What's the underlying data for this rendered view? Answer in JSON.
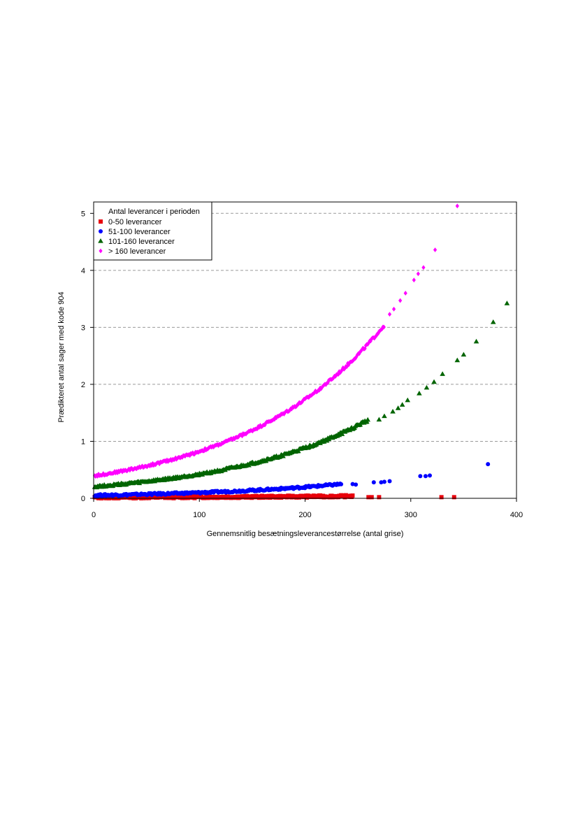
{
  "chart_data": {
    "type": "scatter",
    "xlabel": "Gennemsnitlig besætningsleverancestørrelse (antal grise)",
    "ylabel": "Prædikteret antal sager med kode 904",
    "xlim": [
      0,
      400
    ],
    "ylim": [
      0,
      5.2
    ],
    "x_ticks": [
      0,
      100,
      200,
      300,
      400
    ],
    "y_ticks": [
      0,
      1,
      2,
      3,
      4,
      5
    ],
    "grid": "horizontal dashed",
    "legend": {
      "title": "Antal leverancer i perioden",
      "placement": "top-left"
    },
    "series": [
      {
        "name": "0-50 leverancer",
        "marker": "square",
        "color": "#e8000b",
        "x_range": [
          0,
          245
        ],
        "y_formula": "0.008 * exp(0.0055 * x)",
        "outliers": [
          [
            260,
            0.02
          ],
          [
            263,
            0.02
          ],
          [
            270,
            0.02
          ],
          [
            329,
            0.02
          ],
          [
            341,
            0.02
          ]
        ]
      },
      {
        "name": "51-100 leverancer",
        "marker": "circle",
        "color": "#0000ff",
        "x_range": [
          0,
          235
        ],
        "y_formula": "0.045 * exp(0.0072 * x)",
        "outliers": [
          [
            245,
            0.25
          ],
          [
            248,
            0.24
          ],
          [
            265,
            0.28
          ],
          [
            272,
            0.28
          ],
          [
            275,
            0.29
          ],
          [
            280,
            0.3
          ],
          [
            309,
            0.39
          ],
          [
            314,
            0.39
          ],
          [
            318,
            0.4
          ],
          [
            373,
            0.6
          ]
        ]
      },
      {
        "name": "101-160 leverancer",
        "marker": "triangle",
        "color": "#006400",
        "x_range": [
          0,
          260
        ],
        "y_formula": "0.195 * exp(0.0075 * x)",
        "outliers": [
          [
            270,
            1.38
          ],
          [
            275,
            1.44
          ],
          [
            283,
            1.52
          ],
          [
            288,
            1.58
          ],
          [
            292,
            1.64
          ],
          [
            297,
            1.72
          ],
          [
            308,
            1.84
          ],
          [
            315,
            1.94
          ],
          [
            322,
            2.04
          ],
          [
            330,
            2.18
          ],
          [
            344,
            2.42
          ],
          [
            350,
            2.52
          ],
          [
            362,
            2.75
          ],
          [
            378,
            3.09
          ],
          [
            391,
            3.42
          ]
        ]
      },
      {
        "name": "> 160 leverancer",
        "marker": "diamond",
        "color": "#ff00ff",
        "x_range": [
          0,
          275
        ],
        "y_formula": "0.385 * exp(0.0075 * x)",
        "outliers": [
          [
            280,
            3.23
          ],
          [
            284,
            3.32
          ],
          [
            290,
            3.47
          ],
          [
            295,
            3.6
          ],
          [
            303,
            3.83
          ],
          [
            307,
            3.94
          ],
          [
            312,
            4.05
          ],
          [
            323,
            4.36
          ],
          [
            344,
            5.13
          ]
        ]
      }
    ]
  }
}
